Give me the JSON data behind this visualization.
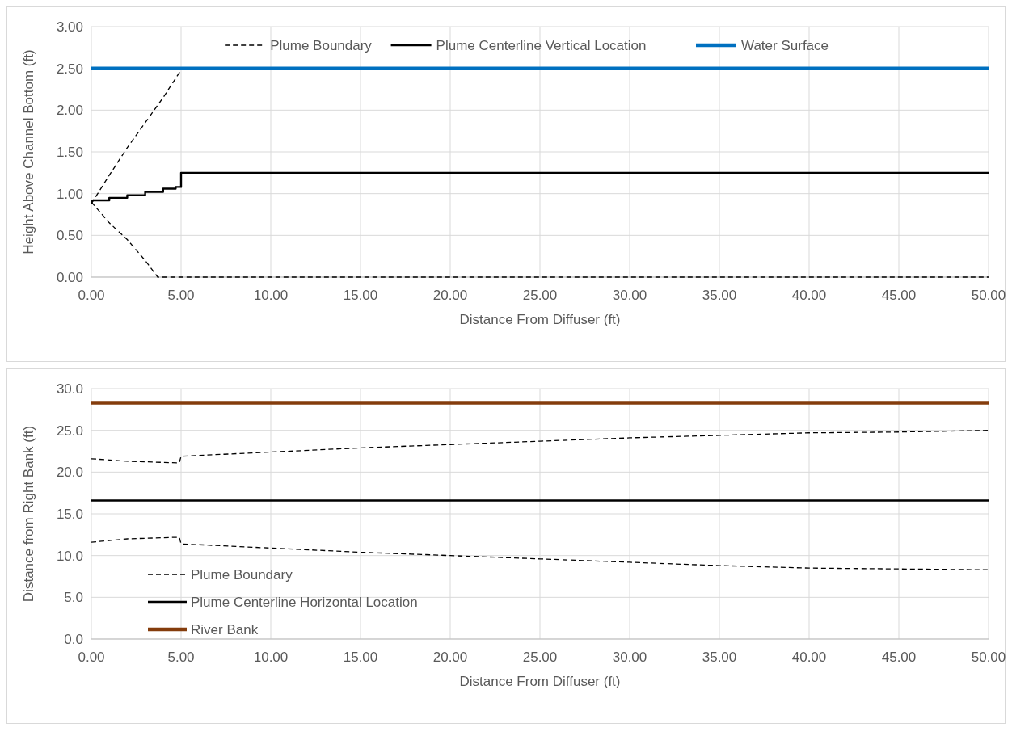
{
  "chart_data": [
    {
      "type": "line",
      "xlabel": "Distance From Diffuser (ft)",
      "ylabel": "Height Above Channel Bottom (ft)",
      "xlim": [
        0,
        50
      ],
      "ylim": [
        0,
        3
      ],
      "xticks": [
        {
          "value": 0,
          "label": "0.00"
        },
        {
          "value": 5,
          "label": "5.00"
        },
        {
          "value": 10,
          "label": "10.00"
        },
        {
          "value": 15,
          "label": "15.00"
        },
        {
          "value": 20,
          "label": "20.00"
        },
        {
          "value": 25,
          "label": "25.00"
        },
        {
          "value": 30,
          "label": "30.00"
        },
        {
          "value": 35,
          "label": "35.00"
        },
        {
          "value": 40,
          "label": "40.00"
        },
        {
          "value": 45,
          "label": "45.00"
        },
        {
          "value": 50,
          "label": "50.00"
        }
      ],
      "yticks": [
        {
          "value": 0,
          "label": "0.00"
        },
        {
          "value": 0.5,
          "label": "0.50"
        },
        {
          "value": 1,
          "label": "1.00"
        },
        {
          "value": 1.5,
          "label": "1.50"
        },
        {
          "value": 2,
          "label": "2.00"
        },
        {
          "value": 2.5,
          "label": "2.50"
        },
        {
          "value": 3,
          "label": "3.00"
        }
      ],
      "grid": true,
      "legend": "top",
      "series": [
        {
          "name": "Plume Boundary",
          "color": "#000000",
          "line_style": "dashed",
          "x": [
            0,
            1,
            2,
            3,
            4,
            5
          ],
          "values": [
            0.88,
            1.22,
            1.55,
            1.85,
            2.15,
            2.48
          ]
        },
        {
          "color": "#000000",
          "line_style": "dashed",
          "x": [
            0,
            1,
            2,
            3,
            3.7,
            50
          ],
          "values": [
            0.9,
            0.65,
            0.45,
            0.2,
            0,
            0
          ]
        },
        {
          "name": "Plume Centerline Vertical Location",
          "color": "#000000",
          "line_style": "solid",
          "x": [
            0,
            0.1,
            1,
            1,
            2,
            2,
            3,
            3,
            4,
            4,
            4.7,
            4.7,
            5,
            5,
            50
          ],
          "values": [
            0.9,
            0.92,
            0.92,
            0.95,
            0.95,
            0.98,
            0.98,
            1.02,
            1.02,
            1.06,
            1.06,
            1.08,
            1.08,
            1.25,
            1.25
          ]
        },
        {
          "name": "Water Surface",
          "color": "#0070c0",
          "line_style": "solid",
          "x": [
            0,
            50
          ],
          "values": [
            2.5,
            2.5
          ]
        }
      ]
    },
    {
      "type": "line",
      "xlabel": "Distance From Diffuser (ft)",
      "ylabel": "Distance from Right Bank (ft)",
      "xlim": [
        0,
        50
      ],
      "ylim": [
        0,
        30
      ],
      "xticks": [
        {
          "value": 0,
          "label": "0.00"
        },
        {
          "value": 5,
          "label": "5.00"
        },
        {
          "value": 10,
          "label": "10.00"
        },
        {
          "value": 15,
          "label": "15.00"
        },
        {
          "value": 20,
          "label": "20.00"
        },
        {
          "value": 25,
          "label": "25.00"
        },
        {
          "value": 30,
          "label": "30.00"
        },
        {
          "value": 35,
          "label": "35.00"
        },
        {
          "value": 40,
          "label": "40.00"
        },
        {
          "value": 45,
          "label": "45.00"
        },
        {
          "value": 50,
          "label": "50.00"
        }
      ],
      "yticks": [
        {
          "value": 0,
          "label": "0.0"
        },
        {
          "value": 5,
          "label": "5.0"
        },
        {
          "value": 10,
          "label": "10.0"
        },
        {
          "value": 15,
          "label": "15.0"
        },
        {
          "value": 20,
          "label": "20.0"
        },
        {
          "value": 25,
          "label": "25.0"
        },
        {
          "value": 30,
          "label": "30.0"
        }
      ],
      "grid": true,
      "legend": "bottom left",
      "series": [
        {
          "name": "Plume Boundary",
          "color": "#000000",
          "line_style": "dashed",
          "x": [
            0,
            2,
            4.9,
            5,
            10,
            15,
            20,
            25,
            30,
            35,
            40,
            45,
            50
          ],
          "values": [
            21.6,
            21.3,
            21.1,
            21.9,
            22.4,
            22.9,
            23.3,
            23.7,
            24.1,
            24.4,
            24.7,
            24.8,
            25.0
          ]
        },
        {
          "color": "#000000",
          "line_style": "dashed",
          "x": [
            0,
            2,
            4.9,
            5,
            10,
            15,
            20,
            25,
            30,
            35,
            40,
            45,
            50
          ],
          "values": [
            11.6,
            12.0,
            12.2,
            11.4,
            10.9,
            10.4,
            10.0,
            9.6,
            9.2,
            8.8,
            8.5,
            8.4,
            8.3
          ]
        },
        {
          "name": "Plume Centerline Horizontal Location",
          "color": "#000000",
          "line_style": "solid",
          "x": [
            0,
            50
          ],
          "values": [
            16.6,
            16.6
          ]
        },
        {
          "name": "River Bank",
          "color": "#843c0c",
          "line_style": "solid",
          "x": [
            0,
            50
          ],
          "values": [
            28.3,
            28.3
          ]
        }
      ]
    }
  ]
}
